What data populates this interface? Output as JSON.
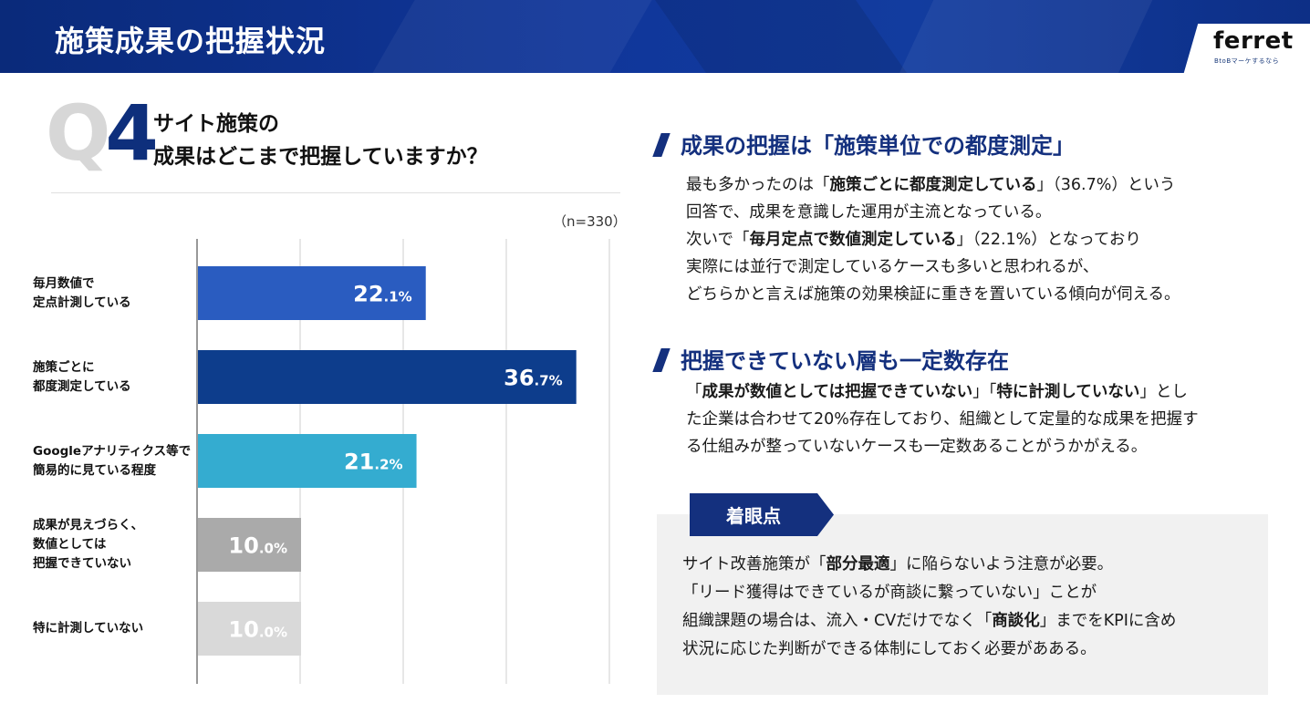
{
  "header": {
    "title": "施策成果の把握状況"
  },
  "logo": {
    "name": "ferret",
    "tagline": "BtoBマーケするなら"
  },
  "question": {
    "q_letter": "Q",
    "q_number": "4",
    "line1": "サイト施策の",
    "line2": "成果はどこまで把握していますか？",
    "sample_size": "（n=330）"
  },
  "colors": {
    "header_navy": "#10369a",
    "accent_navy": "#14307e",
    "bar_blue": "#2a5cc0",
    "bar_navy": "#0d3d8c",
    "bar_cyan": "#34acd0",
    "bar_gray": "#aaaaaa",
    "bar_lightgray": "#d9d9d9"
  },
  "chart_data": {
    "type": "bar",
    "orientation": "horizontal",
    "unit": "%",
    "xlim": [
      0,
      40
    ],
    "grid": true,
    "categories": [
      [
        "毎月数値で",
        "定点計測している"
      ],
      [
        "施策ごとに",
        "都度測定している"
      ],
      [
        "Googleアナリティクス等で",
        "簡易的に見ている程度"
      ],
      [
        "成果が見えづらく、",
        "数値としては",
        "把握できていない"
      ],
      [
        "特に計測していない"
      ]
    ],
    "values": [
      22.1,
      36.7,
      21.2,
      10.0,
      10.0
    ],
    "value_labels": [
      {
        "int": "22",
        "dec": ".1%"
      },
      {
        "int": "36",
        "dec": ".7%"
      },
      {
        "int": "21",
        "dec": ".2%"
      },
      {
        "int": "10",
        "dec": ".0%"
      },
      {
        "int": "10",
        "dec": ".0%"
      }
    ],
    "bar_colors": [
      "#2a5cc0",
      "#0d3d8c",
      "#34acd0",
      "#aaaaaa",
      "#d9d9d9"
    ]
  },
  "section1": {
    "heading": "成果の把握は「施策単位での都度測定」",
    "l1_a": "最も多かったのは「",
    "l1_b": "施策ごとに都度測定している",
    "l1_c": "」（36.7%）という",
    "l2": "回答で、成果を意識した運用が主流となっている。",
    "l3_a": "次いで「",
    "l3_b": "毎月定点で数値測定している",
    "l3_c": "」（22.1%）となっており",
    "l4": "実際には並行で測定しているケースも多いと思われるが、",
    "l5": "どちらかと言えば施策の効果検証に重きを置いている傾向が伺える。"
  },
  "section2": {
    "heading": "把握できていない層も一定数存在",
    "l1_a": "「",
    "l1_b": "成果が数値としては把握できていない",
    "l1_c": "」「",
    "l1_d": "特に計測していない",
    "l1_e": "」とし",
    "l2": "た企業は合わせて20%存在しており、組織として定量的な成果を把握す",
    "l3": "る仕組みが整っていないケースも一定数あることがうかがえる。"
  },
  "note": {
    "tag": "着眼点",
    "l1_a": "サイト改善施策が「",
    "l1_b": "部分最適",
    "l1_c": "」に陥らないよう注意が必要。",
    "l2": "「リード獲得はできているが商談に繋っていない」ことが",
    "l3_a": "組織課題の場合は、流入・CVだけでなく「",
    "l3_b": "商談化",
    "l3_c": "」までをKPIに含め",
    "l4": "状況に応じた判断ができる体制にしておく必要があある。"
  }
}
